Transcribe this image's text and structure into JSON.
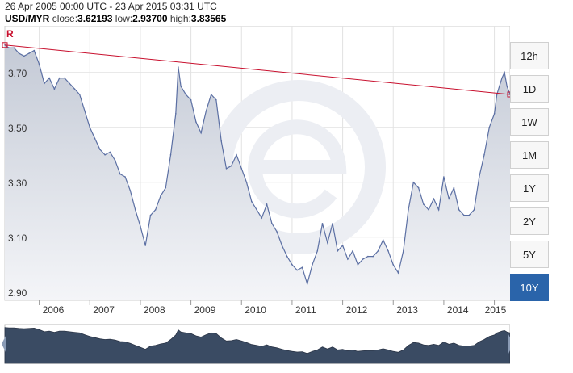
{
  "header": {
    "date_range": "26 Apr 2005 00:00 UTC - 23 Apr 2015 03:31 UTC",
    "symbol": "USD/MYR",
    "close_label": "close:",
    "close_value": "3.62193",
    "low_label": "low:",
    "low_value": "2.93700",
    "high_label": "high:",
    "high_value": "3.83565"
  },
  "range_buttons": [
    {
      "label": "12h",
      "active": false
    },
    {
      "label": "1D",
      "active": false
    },
    {
      "label": "1W",
      "active": false
    },
    {
      "label": "1M",
      "active": false
    },
    {
      "label": "1Y",
      "active": false
    },
    {
      "label": "2Y",
      "active": false
    },
    {
      "label": "5Y",
      "active": false
    },
    {
      "label": "10Y",
      "active": true
    }
  ],
  "colors": {
    "series_line": "#5b6fa3",
    "area_fill_top": "#c4cad6",
    "area_fill_bottom": "#f4f5f8",
    "trend_line": "#c8102e",
    "nav_fill": "#3a4b63",
    "active_button": "#2a64aa"
  },
  "chart_data": {
    "type": "area",
    "x_tick_labels": [
      "2006",
      "2007",
      "2008",
      "2009",
      "2010",
      "2011",
      "2012",
      "2013",
      "2014",
      "2015"
    ],
    "y_tick_labels": [
      "3.70",
      "3.50",
      "3.30",
      "3.10",
      "2.90"
    ],
    "y_ticks": [
      3.7,
      3.5,
      3.3,
      3.1,
      2.9
    ],
    "ylim": [
      2.87,
      3.87
    ],
    "xlim": [
      2005.32,
      2015.31
    ],
    "grid": true,
    "series": [
      {
        "x": [
          2005.32,
          2005.4,
          2005.5,
          2005.6,
          2005.7,
          2005.8,
          2005.9,
          2006.0,
          2006.1,
          2006.2,
          2006.3,
          2006.4,
          2006.5,
          2006.6,
          2006.7,
          2006.8,
          2006.9,
          2007.0,
          2007.1,
          2007.2,
          2007.3,
          2007.4,
          2007.5,
          2007.6,
          2007.7,
          2007.8,
          2007.9,
          2008.0,
          2008.1,
          2008.2,
          2008.3,
          2008.4,
          2008.5,
          2008.6,
          2008.7,
          2008.75,
          2008.8,
          2008.9,
          2009.0,
          2009.1,
          2009.2,
          2009.3,
          2009.4,
          2009.5,
          2009.6,
          2009.7,
          2009.8,
          2009.9,
          2010.0,
          2010.1,
          2010.2,
          2010.3,
          2010.4,
          2010.5,
          2010.6,
          2010.7,
          2010.8,
          2010.9,
          2011.0,
          2011.1,
          2011.2,
          2011.3,
          2011.4,
          2011.5,
          2011.6,
          2011.7,
          2011.8,
          2011.9,
          2012.0,
          2012.1,
          2012.2,
          2012.3,
          2012.4,
          2012.5,
          2012.6,
          2012.7,
          2012.8,
          2012.9,
          2013.0,
          2013.1,
          2013.2,
          2013.3,
          2013.4,
          2013.5,
          2013.6,
          2013.7,
          2013.8,
          2013.9,
          2014.0,
          2014.1,
          2014.2,
          2014.3,
          2014.4,
          2014.5,
          2014.6,
          2014.7,
          2014.8,
          2014.9,
          2015.0,
          2015.05,
          2015.1,
          2015.15,
          2015.2,
          2015.25,
          2015.31
        ],
        "values": [
          3.8,
          3.79,
          3.79,
          3.77,
          3.76,
          3.77,
          3.78,
          3.73,
          3.66,
          3.68,
          3.64,
          3.68,
          3.68,
          3.66,
          3.64,
          3.62,
          3.56,
          3.5,
          3.46,
          3.42,
          3.4,
          3.41,
          3.38,
          3.33,
          3.32,
          3.27,
          3.2,
          3.14,
          3.07,
          3.18,
          3.2,
          3.25,
          3.28,
          3.4,
          3.55,
          3.72,
          3.65,
          3.62,
          3.6,
          3.52,
          3.48,
          3.56,
          3.62,
          3.6,
          3.45,
          3.35,
          3.36,
          3.4,
          3.35,
          3.3,
          3.23,
          3.2,
          3.17,
          3.22,
          3.15,
          3.12,
          3.07,
          3.03,
          3.0,
          2.98,
          2.99,
          2.93,
          3.0,
          3.05,
          3.15,
          3.08,
          3.15,
          3.05,
          3.07,
          3.02,
          3.05,
          3.0,
          3.02,
          3.03,
          3.03,
          3.05,
          3.09,
          3.05,
          3.0,
          2.97,
          3.05,
          3.2,
          3.3,
          3.28,
          3.22,
          3.2,
          3.24,
          3.2,
          3.32,
          3.24,
          3.28,
          3.2,
          3.18,
          3.18,
          3.2,
          3.32,
          3.4,
          3.5,
          3.55,
          3.62,
          3.65,
          3.68,
          3.7,
          3.65,
          3.62
        ]
      }
    ],
    "annotations": [
      {
        "label": "R",
        "x": 2005.32,
        "y": 3.8
      },
      {
        "label": "R",
        "x": 2015.31,
        "y": 3.62
      }
    ],
    "trendline": {
      "x1": 2005.32,
      "y1": 3.8,
      "x2": 2015.31,
      "y2": 3.62
    }
  }
}
